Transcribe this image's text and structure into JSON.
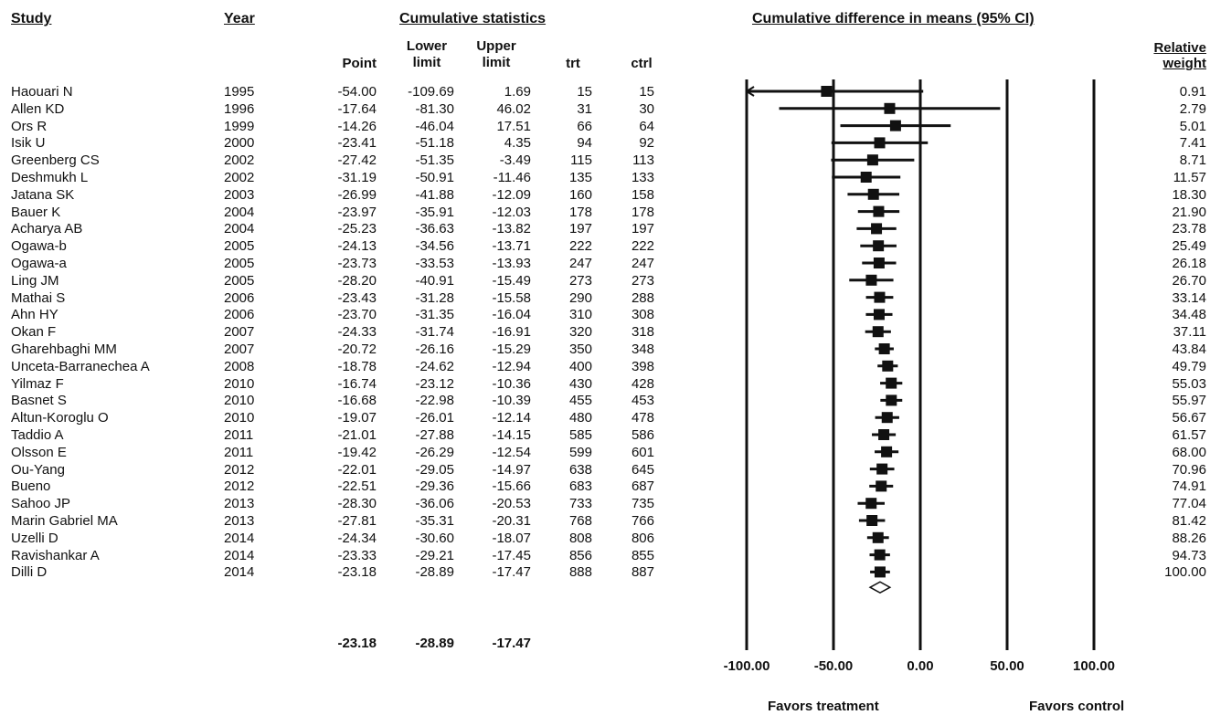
{
  "headers": {
    "study": "Study",
    "year": "Year",
    "cumulative_statistics": "Cumulative statistics",
    "plot_title": "Cumulative difference in means (95% CI)",
    "point": "Point",
    "lower_1": "Lower",
    "lower_2": "limit",
    "upper_1": "Upper",
    "upper_2": "limit",
    "trt": "trt",
    "ctrl": "ctrl",
    "relative_1": "Relative",
    "relative_2": "weight"
  },
  "summary": {
    "point": "-23.18",
    "lower": "-28.89",
    "upper": "-17.47"
  },
  "footer": {
    "favors_treatment": "Favors treatment",
    "favors_control": "Favors control"
  },
  "chart_data": {
    "type": "forest",
    "title": "Cumulative difference in means (95% CI)",
    "xlim": [
      -100,
      100
    ],
    "x_ticks": [
      -100,
      -50,
      0,
      50,
      100
    ],
    "x_tick_labels": [
      "-100.00",
      "-50.00",
      "0.00",
      "50.00",
      "100.00"
    ],
    "summary": {
      "point": -23.18,
      "lower": -28.89,
      "upper": -17.47
    },
    "rows": [
      {
        "study": "Haouari N",
        "year": "1995",
        "point": "-54.00",
        "lower": "-109.69",
        "upper": "1.69",
        "trt": "15",
        "ctrl": "15",
        "weight": "0.91"
      },
      {
        "study": "Allen KD",
        "year": "1996",
        "point": "-17.64",
        "lower": "-81.30",
        "upper": "46.02",
        "trt": "31",
        "ctrl": "30",
        "weight": "2.79"
      },
      {
        "study": "Ors R",
        "year": "1999",
        "point": "-14.26",
        "lower": "-46.04",
        "upper": "17.51",
        "trt": "66",
        "ctrl": "64",
        "weight": "5.01"
      },
      {
        "study": "Isik U",
        "year": "2000",
        "point": "-23.41",
        "lower": "-51.18",
        "upper": "4.35",
        "trt": "94",
        "ctrl": "92",
        "weight": "7.41"
      },
      {
        "study": "Greenberg CS",
        "year": "2002",
        "point": "-27.42",
        "lower": "-51.35",
        "upper": "-3.49",
        "trt": "115",
        "ctrl": "113",
        "weight": "8.71"
      },
      {
        "study": "Deshmukh L",
        "year": "2002",
        "point": "-31.19",
        "lower": "-50.91",
        "upper": "-11.46",
        "trt": "135",
        "ctrl": "133",
        "weight": "11.57"
      },
      {
        "study": "Jatana SK",
        "year": "2003",
        "point": "-26.99",
        "lower": "-41.88",
        "upper": "-12.09",
        "trt": "160",
        "ctrl": "158",
        "weight": "18.30"
      },
      {
        "study": "Bauer K",
        "year": "2004",
        "point": "-23.97",
        "lower": "-35.91",
        "upper": "-12.03",
        "trt": "178",
        "ctrl": "178",
        "weight": "21.90"
      },
      {
        "study": "Acharya AB",
        "year": "2004",
        "point": "-25.23",
        "lower": "-36.63",
        "upper": "-13.82",
        "trt": "197",
        "ctrl": "197",
        "weight": "23.78"
      },
      {
        "study": "Ogawa-b",
        "year": "2005",
        "point": "-24.13",
        "lower": "-34.56",
        "upper": "-13.71",
        "trt": "222",
        "ctrl": "222",
        "weight": "25.49"
      },
      {
        "study": "Ogawa-a",
        "year": "2005",
        "point": "-23.73",
        "lower": "-33.53",
        "upper": "-13.93",
        "trt": "247",
        "ctrl": "247",
        "weight": "26.18"
      },
      {
        "study": "Ling JM",
        "year": "2005",
        "point": "-28.20",
        "lower": "-40.91",
        "upper": "-15.49",
        "trt": "273",
        "ctrl": "273",
        "weight": "26.70"
      },
      {
        "study": "Mathai S",
        "year": "2006",
        "point": "-23.43",
        "lower": "-31.28",
        "upper": "-15.58",
        "trt": "290",
        "ctrl": "288",
        "weight": "33.14"
      },
      {
        "study": "Ahn HY",
        "year": "2006",
        "point": "-23.70",
        "lower": "-31.35",
        "upper": "-16.04",
        "trt": "310",
        "ctrl": "308",
        "weight": "34.48"
      },
      {
        "study": "Okan F",
        "year": "2007",
        "point": "-24.33",
        "lower": "-31.74",
        "upper": "-16.91",
        "trt": "320",
        "ctrl": "318",
        "weight": "37.11"
      },
      {
        "study": "Gharehbaghi MM",
        "year": "2007",
        "point": "-20.72",
        "lower": "-26.16",
        "upper": "-15.29",
        "trt": "350",
        "ctrl": "348",
        "weight": "43.84"
      },
      {
        "study": "Unceta-Barranechea A",
        "year": "2008",
        "point": "-18.78",
        "lower": "-24.62",
        "upper": "-12.94",
        "trt": "400",
        "ctrl": "398",
        "weight": "49.79"
      },
      {
        "study": "Yilmaz F",
        "year": "2010",
        "point": "-16.74",
        "lower": "-23.12",
        "upper": "-10.36",
        "trt": "430",
        "ctrl": "428",
        "weight": "55.03"
      },
      {
        "study": "Basnet S",
        "year": "2010",
        "point": "-16.68",
        "lower": "-22.98",
        "upper": "-10.39",
        "trt": "455",
        "ctrl": "453",
        "weight": "55.97"
      },
      {
        "study": "Altun-Koroglu O",
        "year": "2010",
        "point": "-19.07",
        "lower": "-26.01",
        "upper": "-12.14",
        "trt": "480",
        "ctrl": "478",
        "weight": "56.67"
      },
      {
        "study": "Taddio A",
        "year": "2011",
        "point": "-21.01",
        "lower": "-27.88",
        "upper": "-14.15",
        "trt": "585",
        "ctrl": "586",
        "weight": "61.57"
      },
      {
        "study": "Olsson E",
        "year": "2011",
        "point": "-19.42",
        "lower": "-26.29",
        "upper": "-12.54",
        "trt": "599",
        "ctrl": "601",
        "weight": "68.00"
      },
      {
        "study": "Ou-Yang",
        "year": "2012",
        "point": "-22.01",
        "lower": "-29.05",
        "upper": "-14.97",
        "trt": "638",
        "ctrl": "645",
        "weight": "70.96"
      },
      {
        "study": "Bueno",
        "year": "2012",
        "point": "-22.51",
        "lower": "-29.36",
        "upper": "-15.66",
        "trt": "683",
        "ctrl": "687",
        "weight": "74.91"
      },
      {
        "study": "Sahoo JP",
        "year": "2013",
        "point": "-28.30",
        "lower": "-36.06",
        "upper": "-20.53",
        "trt": "733",
        "ctrl": "735",
        "weight": "77.04"
      },
      {
        "study": "Marin Gabriel MA",
        "year": "2013",
        "point": "-27.81",
        "lower": "-35.31",
        "upper": "-20.31",
        "trt": "768",
        "ctrl": "766",
        "weight": "81.42"
      },
      {
        "study": "Uzelli D",
        "year": "2014",
        "point": "-24.34",
        "lower": "-30.60",
        "upper": "-18.07",
        "trt": "808",
        "ctrl": "806",
        "weight": "88.26"
      },
      {
        "study": "Ravishankar A",
        "year": "2014",
        "point": "-23.33",
        "lower": "-29.21",
        "upper": "-17.45",
        "trt": "856",
        "ctrl": "855",
        "weight": "94.73"
      },
      {
        "study": "Dilli D",
        "year": "2014",
        "point": "-23.18",
        "lower": "-28.89",
        "upper": "-17.47",
        "trt": "888",
        "ctrl": "887",
        "weight": "100.00"
      }
    ]
  }
}
